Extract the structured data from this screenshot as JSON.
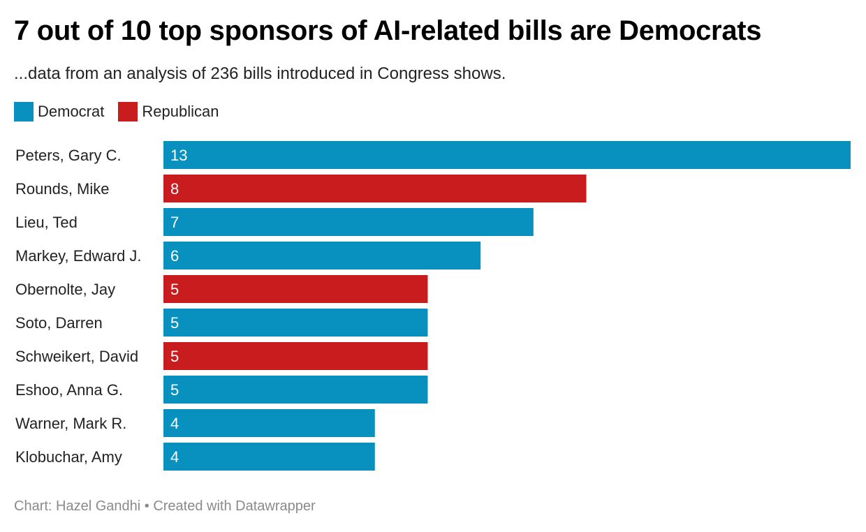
{
  "chart_data": {
    "type": "bar",
    "orientation": "horizontal",
    "title": "7 out of 10 top sponsors of AI-related bills are Democrats",
    "subtitle": "...data from an analysis of 236 bills introduced in Congress shows.",
    "legend": [
      {
        "name": "Democrat",
        "color": "#0891be"
      },
      {
        "name": "Republican",
        "color": "#c91c1f"
      }
    ],
    "legend_position": "top-left",
    "categories": [
      "Peters, Gary C.",
      "Rounds, Mike",
      "Lieu, Ted",
      "Markey, Edward J.",
      "Obernolte, Jay",
      "Soto, Darren",
      "Schweikert, David",
      "Eshoo, Anna G.",
      "Warner, Mark R.",
      "Klobuchar, Amy"
    ],
    "values": [
      13,
      8,
      7,
      6,
      5,
      5,
      5,
      5,
      4,
      4
    ],
    "party": [
      "Democrat",
      "Republican",
      "Democrat",
      "Democrat",
      "Republican",
      "Democrat",
      "Republican",
      "Democrat",
      "Democrat",
      "Democrat"
    ],
    "xlim": [
      0,
      13
    ],
    "grid": false,
    "data_labels": true
  },
  "footer": "Chart: Hazel Gandhi • Created with Datawrapper"
}
